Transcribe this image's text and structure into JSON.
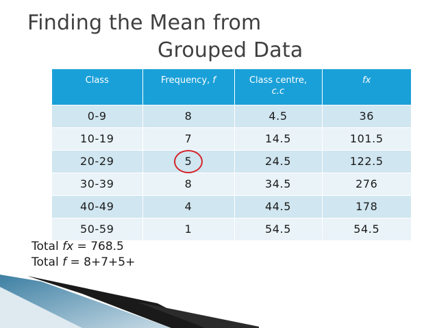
{
  "slide": {
    "title_line1": "Finding the Mean from",
    "title_line2": "Grouped Data"
  },
  "table": {
    "headers": [
      {
        "text": "Class",
        "italic": ""
      },
      {
        "text": "Frequency, ",
        "italic": "f"
      },
      {
        "text": "Class centre,",
        "italic": "c.c"
      },
      {
        "text": "",
        "italic": "fx"
      }
    ],
    "rows": [
      [
        "0-9",
        "8",
        "4.5",
        "36"
      ],
      [
        "10-19",
        "7",
        "14.5",
        "101.5"
      ],
      [
        "20-29",
        "5",
        "24.5",
        "122.5"
      ],
      [
        "30-39",
        "8",
        "34.5",
        "276"
      ],
      [
        "40-49",
        "4",
        "44.5",
        "178"
      ],
      [
        "50-59",
        "1",
        "54.5",
        "54.5"
      ]
    ],
    "header_color": "#1aa0d8",
    "row_color_odd": "#d0e6f0",
    "row_color_even": "#e9f3f8"
  },
  "annotation": {
    "circle_color": "#d6222a"
  },
  "totals": {
    "line1_prefix": "Total ",
    "line1_var": "fx",
    "line1_rest": " = 768.5",
    "line2_prefix": "Total ",
    "line2_var": "f",
    "line2_rest": " = 8+7+5+"
  }
}
